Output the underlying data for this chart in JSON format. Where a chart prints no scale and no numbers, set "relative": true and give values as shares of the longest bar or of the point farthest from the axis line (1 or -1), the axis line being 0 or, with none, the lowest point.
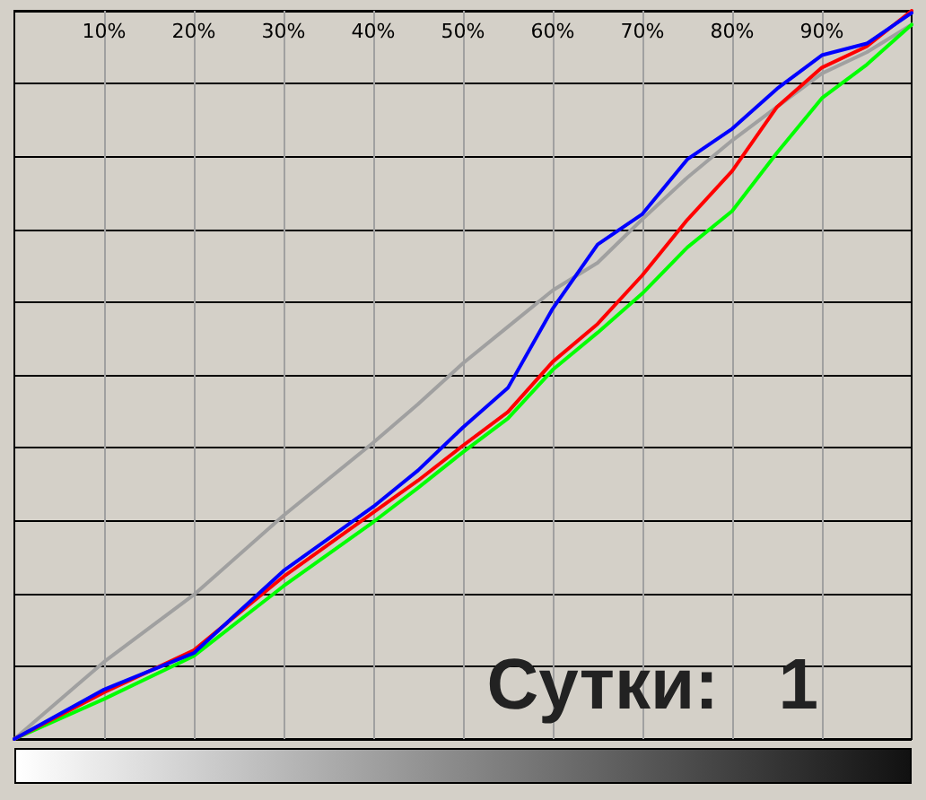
{
  "chart_data": {
    "type": "line",
    "relative": true,
    "marker": "none",
    "line_style": "solid",
    "grid": true,
    "x": [
      0,
      10,
      20,
      30,
      40,
      45,
      50,
      55,
      60,
      65,
      70,
      75,
      80,
      85,
      90,
      95,
      100
    ],
    "xlim": [
      0,
      100
    ],
    "xticks": [
      {
        "value": 10,
        "label": "10%"
      },
      {
        "value": 20,
        "label": "20%"
      },
      {
        "value": 30,
        "label": "30%"
      },
      {
        "value": 40,
        "label": "40%"
      },
      {
        "value": 50,
        "label": "50%"
      },
      {
        "value": 60,
        "label": "60%"
      },
      {
        "value": 70,
        "label": "70%"
      },
      {
        "value": 80,
        "label": "80%"
      },
      {
        "value": 90,
        "label": "90%"
      }
    ],
    "series": [
      {
        "color": "#a0a0a0",
        "values": [
          0,
          0.106,
          0.198,
          0.307,
          0.407,
          0.46,
          0.516,
          0.566,
          0.616,
          0.654,
          0.714,
          0.771,
          0.822,
          0.868,
          0.914,
          0.943,
          0.981
        ]
      },
      {
        "color": "#00ff00",
        "values": [
          0,
          0.055,
          0.114,
          0.21,
          0.298,
          0.345,
          0.394,
          0.44,
          0.507,
          0.558,
          0.612,
          0.675,
          0.725,
          0.805,
          0.88,
          0.926,
          0.981
        ]
      },
      {
        "color": "#ff0000",
        "values": [
          0,
          0.064,
          0.122,
          0.223,
          0.311,
          0.355,
          0.403,
          0.449,
          0.518,
          0.57,
          0.637,
          0.713,
          0.78,
          0.868,
          0.922,
          0.951,
          1
        ]
      },
      {
        "color": "#0000ff",
        "values": [
          0,
          0.068,
          0.118,
          0.231,
          0.319,
          0.369,
          0.428,
          0.482,
          0.591,
          0.679,
          0.721,
          0.796,
          0.838,
          0.893,
          0.939,
          0.955,
          0.997
        ]
      }
    ],
    "annotations": [
      "Сутки:   1"
    ]
  }
}
